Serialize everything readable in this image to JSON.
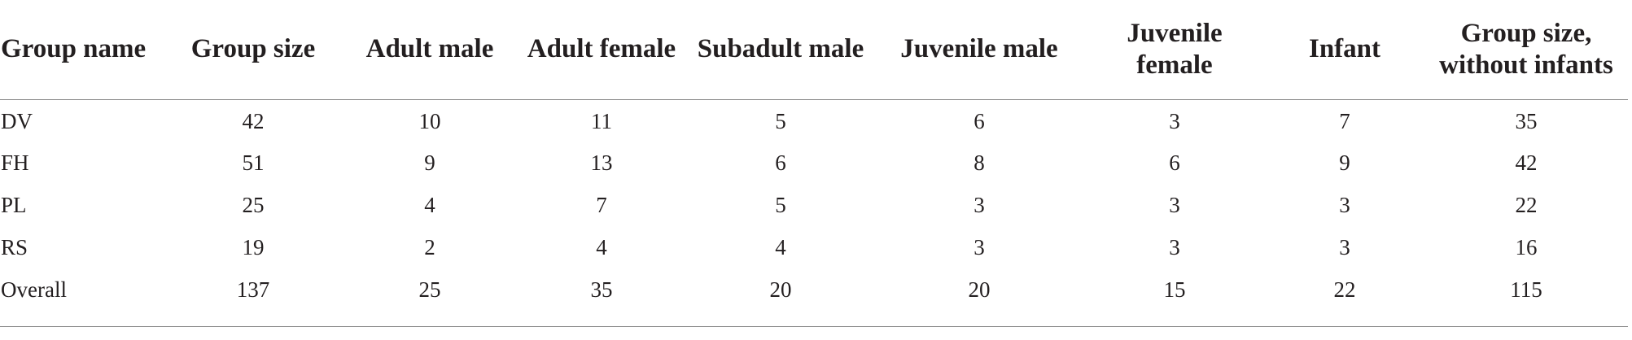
{
  "table": {
    "headers": [
      "Group name",
      "Group size",
      "Adult male",
      "Adult female",
      "Subadult male",
      "Juvenile male",
      "Juvenile female",
      "Infant",
      "Group size, without infants"
    ],
    "rows": [
      [
        "DV",
        "42",
        "10",
        "11",
        "5",
        "6",
        "3",
        "7",
        "35"
      ],
      [
        "FH",
        "51",
        "9",
        "13",
        "6",
        "8",
        "6",
        "9",
        "42"
      ],
      [
        "PL",
        "25",
        "4",
        "7",
        "5",
        "3",
        "3",
        "3",
        "22"
      ],
      [
        "RS",
        "19",
        "2",
        "4",
        "4",
        "3",
        "3",
        "3",
        "16"
      ],
      [
        "Overall",
        "137",
        "25",
        "35",
        "20",
        "20",
        "15",
        "22",
        "115"
      ]
    ]
  }
}
